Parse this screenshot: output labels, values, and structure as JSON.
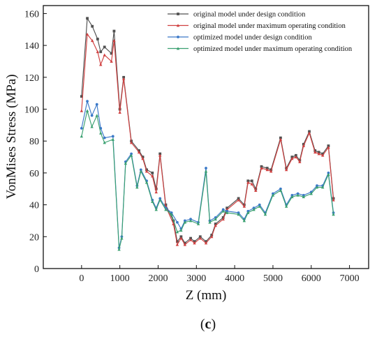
{
  "chart_data": {
    "type": "line",
    "title": "",
    "xlabel": "Z (mm)",
    "ylabel": "VonMises Stress (MPa)",
    "xlim": [
      -1000,
      7500
    ],
    "ylim": [
      0,
      165
    ],
    "xticks": [
      0,
      1000,
      2000,
      3000,
      4000,
      5000,
      6000,
      7000
    ],
    "yticks": [
      0,
      20,
      40,
      60,
      80,
      100,
      120,
      140,
      160
    ],
    "grid": false,
    "legend_position": "top-right",
    "panel_label_prefix": "(",
    "panel_label_bold": "c",
    "panel_label_suffix": ")",
    "series": [
      {
        "name": "original model under design condition",
        "color": "#505050",
        "marker": "square",
        "x": [
          0,
          150,
          280,
          420,
          500,
          600,
          780,
          850,
          1000,
          1100,
          1300,
          1500,
          1600,
          1700,
          1850,
          1950,
          2050,
          2200,
          2400,
          2500,
          2600,
          2700,
          2850,
          2950,
          3100,
          3250,
          3400,
          3500,
          3700,
          3800,
          4100,
          4250,
          4350,
          4450,
          4550,
          4700,
          4850,
          4950,
          5200,
          5350,
          5500,
          5600,
          5700,
          5800,
          5950,
          6100,
          6200,
          6300,
          6450,
          6580
        ],
        "y": [
          108,
          157,
          152,
          144,
          136,
          139,
          135,
          149,
          100,
          120,
          80,
          74,
          70,
          62,
          60,
          50,
          72,
          40,
          30,
          17,
          20,
          16,
          19,
          17,
          20,
          17,
          21,
          28,
          32,
          38,
          44,
          40,
          55,
          55,
          50,
          64,
          63,
          62,
          82,
          63,
          70,
          71,
          68,
          78,
          86,
          74,
          73,
          72,
          77,
          44
        ]
      },
      {
        "name": "original model under maximum operating condition",
        "color": "#d04040",
        "marker": "triangle",
        "x": [
          0,
          150,
          280,
          420,
          500,
          600,
          780,
          850,
          1000,
          1100,
          1300,
          1500,
          1600,
          1700,
          1850,
          1950,
          2050,
          2200,
          2400,
          2500,
          2600,
          2700,
          2850,
          2950,
          3100,
          3250,
          3400,
          3500,
          3700,
          3800,
          4100,
          4250,
          4350,
          4450,
          4550,
          4700,
          4850,
          4950,
          5200,
          5350,
          5500,
          5600,
          5700,
          5800,
          5950,
          6100,
          6200,
          6300,
          6450,
          6580
        ],
        "y": [
          99,
          147,
          143,
          136,
          128,
          134,
          130,
          143,
          98,
          119,
          79,
          73,
          69,
          61,
          58,
          48,
          71,
          39,
          28,
          15,
          19,
          15,
          18,
          16,
          19,
          16,
          20,
          27,
          31,
          37,
          43,
          39,
          54,
          53,
          49,
          63,
          62,
          61,
          81,
          62,
          69,
          70,
          67,
          77,
          85,
          73,
          72,
          71,
          76,
          43
        ]
      },
      {
        "name": "optimized model under design condition",
        "color": "#3a78c8",
        "marker": "circle",
        "x": [
          0,
          150,
          270,
          400,
          500,
          600,
          820,
          980,
          1050,
          1150,
          1300,
          1450,
          1550,
          1700,
          1850,
          1950,
          2050,
          2200,
          2350,
          2500,
          2600,
          2700,
          2850,
          3050,
          3250,
          3350,
          3500,
          3700,
          3800,
          4100,
          4250,
          4350,
          4500,
          4650,
          4800,
          5000,
          5200,
          5350,
          5500,
          5650,
          5800,
          6000,
          6150,
          6300,
          6450,
          6580
        ],
        "y": [
          88,
          105,
          96,
          103,
          88,
          82,
          83,
          13,
          20,
          67,
          72,
          52,
          62,
          55,
          43,
          38,
          44,
          38,
          35,
          29,
          25,
          30,
          31,
          29,
          63,
          30,
          32,
          37,
          36,
          35,
          31,
          36,
          38,
          40,
          35,
          47,
          50,
          40,
          46,
          47,
          46,
          48,
          52,
          52,
          60,
          35
        ]
      },
      {
        "name": "optimized model under maximum operating condition",
        "color": "#3aa070",
        "marker": "triangle",
        "x": [
          0,
          150,
          270,
          400,
          500,
          600,
          820,
          980,
          1050,
          1150,
          1300,
          1450,
          1550,
          1700,
          1850,
          1950,
          2050,
          2200,
          2350,
          2500,
          2600,
          2700,
          2850,
          3050,
          3250,
          3350,
          3500,
          3700,
          3800,
          4100,
          4250,
          4350,
          4500,
          4650,
          4800,
          5000,
          5200,
          5350,
          5500,
          5650,
          5800,
          6000,
          6150,
          6300,
          6450,
          6580
        ],
        "y": [
          83,
          99,
          89,
          96,
          85,
          79,
          81,
          12,
          19,
          66,
          71,
          51,
          61,
          54,
          42,
          37,
          43,
          37,
          34,
          23,
          24,
          29,
          30,
          28,
          61,
          29,
          31,
          36,
          35,
          34,
          30,
          35,
          37,
          39,
          34,
          46,
          49,
          39,
          45,
          46,
          45,
          47,
          51,
          51,
          59,
          34
        ]
      }
    ]
  }
}
